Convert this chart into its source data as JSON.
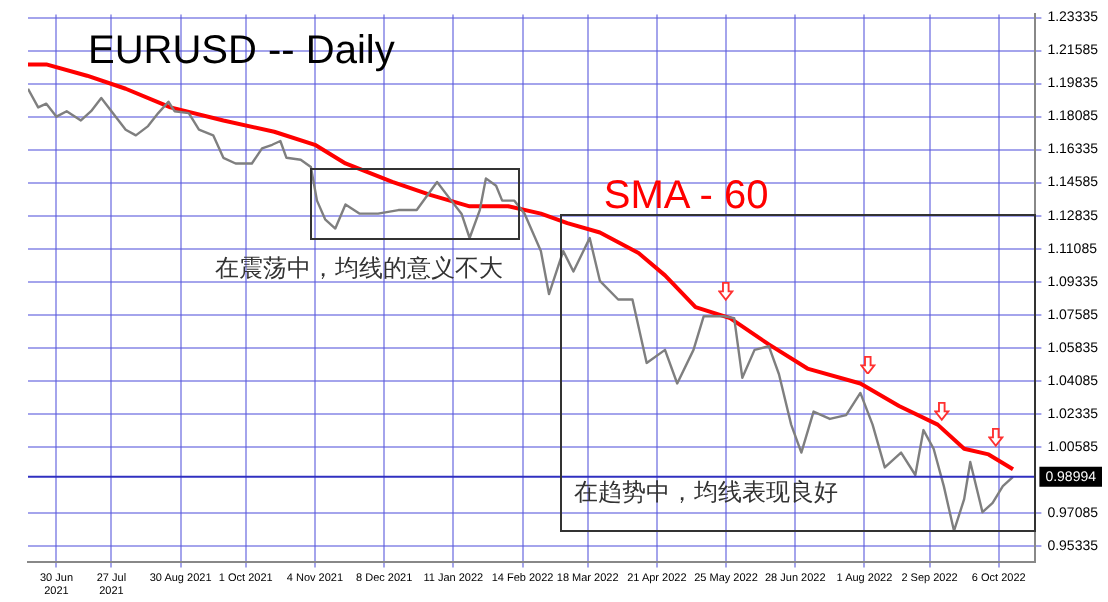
{
  "chart_data": {
    "type": "line",
    "title": "EURUSD -- Daily",
    "annotations": [
      "在震荡中，均线的意义不大",
      "在趋势中，均线表现良好"
    ],
    "series": [
      {
        "name": null,
        "color": "#7f7f7f",
        "x": [
          "2021-06-16",
          "2021-06-21",
          "2021-06-25",
          "2021-06-30",
          "2021-07-05",
          "2021-07-12",
          "2021-07-17",
          "2021-07-22",
          "2021-07-27",
          "2021-08-03",
          "2021-08-08",
          "2021-08-14",
          "2021-08-19",
          "2021-08-24",
          "2021-08-27",
          "2021-09-03",
          "2021-09-08",
          "2021-09-15",
          "2021-09-20",
          "2021-09-26",
          "2021-10-04",
          "2021-10-09",
          "2021-10-14",
          "2021-10-18",
          "2021-10-21",
          "2021-10-28",
          "2021-11-02",
          "2021-11-05",
          "2021-11-09",
          "2021-11-14",
          "2021-11-19",
          "2021-11-26",
          "2021-12-05",
          "2021-12-15",
          "2021-12-24",
          "2022-01-03",
          "2022-01-10",
          "2022-01-15",
          "2022-01-19",
          "2022-01-24",
          "2022-01-27",
          "2022-02-01",
          "2022-02-04",
          "2022-02-10",
          "2022-02-15",
          "2022-02-23",
          "2022-02-27",
          "2022-03-06",
          "2022-03-11",
          "2022-03-19",
          "2022-03-24",
          "2022-04-02",
          "2022-04-09",
          "2022-04-16",
          "2022-04-25",
          "2022-05-01",
          "2022-05-09",
          "2022-05-14",
          "2022-05-24",
          "2022-05-29",
          "2022-06-02",
          "2022-06-08",
          "2022-06-15",
          "2022-06-20",
          "2022-06-26",
          "2022-07-01",
          "2022-07-07",
          "2022-07-15",
          "2022-07-23",
          "2022-07-30",
          "2022-08-05",
          "2022-08-11",
          "2022-08-19",
          "2022-08-26",
          "2022-08-30",
          "2022-09-04",
          "2022-09-09",
          "2022-09-14",
          "2022-09-19",
          "2022-09-22",
          "2022-09-28",
          "2022-10-03",
          "2022-10-08",
          "2022-10-13"
        ],
        "values": [
          1.1956,
          1.1857,
          1.1877,
          1.1808,
          1.1837,
          1.1788,
          1.1837,
          1.1907,
          1.1837,
          1.1739,
          1.1709,
          1.1758,
          1.1827,
          1.1887,
          1.1837,
          1.1827,
          1.1739,
          1.1709,
          1.159,
          1.156,
          1.156,
          1.164,
          1.1659,
          1.1679,
          1.159,
          1.158,
          1.1541,
          1.1363,
          1.1264,
          1.1215,
          1.1343,
          1.1294,
          1.1294,
          1.1313,
          1.1313,
          1.1462,
          1.1363,
          1.1294,
          1.1165,
          1.1313,
          1.1481,
          1.1442,
          1.1363,
          1.1363,
          1.1294,
          1.1096,
          1.0868,
          1.1096,
          1.0987,
          1.1165,
          1.0938,
          1.0839,
          1.0839,
          1.0503,
          1.0572,
          1.0394,
          1.0572,
          1.075,
          1.075,
          1.074,
          1.0424,
          1.0572,
          1.0592,
          1.0443,
          1.0176,
          1.0028,
          1.0245,
          1.0206,
          1.0226,
          1.0344,
          1.0176,
          0.9949,
          1.0028,
          0.9909,
          1.0147,
          1.0048,
          0.985,
          0.9613,
          0.9781,
          0.9978,
          0.9712,
          0.9761,
          0.985,
          0.9899
        ]
      },
      {
        "name": "SMA - 60",
        "color": "#ff0000",
        "x": [
          "2021-06-16",
          "2021-06-25",
          "2021-07-15",
          "2021-08-03",
          "2021-08-25",
          "2021-09-20",
          "2021-10-15",
          "2021-11-04",
          "2021-11-19",
          "2021-12-12",
          "2021-12-31",
          "2022-01-19",
          "2022-02-07",
          "2022-02-23",
          "2022-03-08",
          "2022-03-24",
          "2022-04-12",
          "2022-04-25",
          "2022-05-10",
          "2022-05-27",
          "2022-06-15",
          "2022-07-04",
          "2022-07-30",
          "2022-08-18",
          "2022-09-06",
          "2022-09-19",
          "2022-10-01",
          "2022-10-13"
        ],
        "values": [
          1.2085,
          1.2085,
          1.2025,
          1.1956,
          1.1857,
          1.1788,
          1.1728,
          1.1659,
          1.156,
          1.1462,
          1.1392,
          1.1333,
          1.1333,
          1.1294,
          1.1244,
          1.1194,
          1.1085,
          1.0967,
          1.0799,
          1.074,
          1.0601,
          1.0473,
          1.0394,
          1.0275,
          1.0176,
          1.0048,
          1.0018,
          0.9939
        ]
      }
    ],
    "xlim": [
      "2021-06-16",
      "2022-10-24"
    ],
    "xticks": [
      {
        "value": "2021-06-30",
        "label": "30 Jun 2021"
      },
      {
        "value": "2021-07-27",
        "label": "27 Jul 2021"
      },
      {
        "value": "2021-08-30",
        "label": "30 Aug 2021"
      },
      {
        "value": "2021-10-01",
        "label": "1 Oct 2021"
      },
      {
        "value": "2021-11-04",
        "label": "4 Nov 2021"
      },
      {
        "value": "2021-12-08",
        "label": "8 Dec 2021"
      },
      {
        "value": "2022-01-11",
        "label": "11 Jan 2022"
      },
      {
        "value": "2022-02-14",
        "label": "14 Feb 2022"
      },
      {
        "value": "2022-03-18",
        "label": "18 Mar 2022"
      },
      {
        "value": "2022-04-21",
        "label": "21 Apr 2022"
      },
      {
        "value": "2022-05-25",
        "label": "25 May 2022"
      },
      {
        "value": "2022-06-28",
        "label": "28 Jun 2022"
      },
      {
        "value": "2022-08-01",
        "label": "1 Aug 2022"
      },
      {
        "value": "2022-09-02",
        "label": "2 Sep 2022"
      },
      {
        "value": "2022-10-06",
        "label": "6 Oct 2022"
      }
    ],
    "ylim": [
      0.945,
      1.235
    ],
    "yticks": [
      0.95335,
      0.97085,
      1.00585,
      1.02335,
      1.04085,
      1.05835,
      1.07585,
      1.09335,
      1.11085,
      1.12835,
      1.14585,
      1.16335,
      1.18085,
      1.19835,
      1.21585,
      1.23335
    ],
    "ref_lines": [
      {
        "axis": "y",
        "value": 0.98994,
        "label": "0.98994",
        "color": "#3030c0"
      }
    ],
    "grid": true,
    "marker": "none",
    "line_style": "solid"
  }
}
